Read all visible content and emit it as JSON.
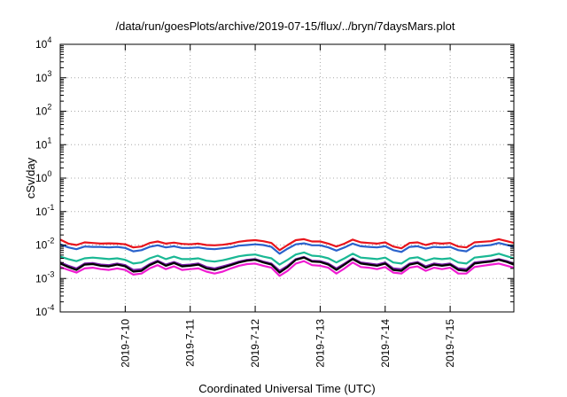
{
  "chart_data": {
    "type": "line",
    "title": "/data/run/goesPlots/archive/2019-07-15/flux/../bryn/7daysMars.plot",
    "xlabel": "Coordinated Universal Time (UTC)",
    "ylabel": "cSv/day",
    "yscale": "log",
    "ylim": [
      0.0001,
      10000
    ],
    "xlim": [
      0.0,
      6.98
    ],
    "y_tick_exponents": [
      "4",
      "3",
      "2",
      "1",
      "0",
      "-1",
      "-2",
      "-3",
      "-4"
    ],
    "x_ticks": [
      {
        "x": 1,
        "label": "2019-7-10"
      },
      {
        "x": 2,
        "label": "2019-7-11"
      },
      {
        "x": 3,
        "label": "2019-7-12"
      },
      {
        "x": 4,
        "label": "2019-7-13"
      },
      {
        "x": 5,
        "label": "2019-7-14"
      },
      {
        "x": 6,
        "label": "2019-7-15"
      }
    ],
    "grid": true,
    "x": [
      0.0,
      0.125,
      0.25,
      0.375,
      0.5,
      0.625,
      0.75,
      0.875,
      1.0,
      1.125,
      1.25,
      1.375,
      1.5,
      1.625,
      1.75,
      1.875,
      2.0,
      2.125,
      2.25,
      2.375,
      2.5,
      2.625,
      2.75,
      2.875,
      3.0,
      3.125,
      3.25,
      3.375,
      3.5,
      3.625,
      3.75,
      3.875,
      4.0,
      4.125,
      4.25,
      4.375,
      4.5,
      4.625,
      4.75,
      4.875,
      5.0,
      5.125,
      5.25,
      5.375,
      5.5,
      5.625,
      5.75,
      5.875,
      6.0,
      6.125,
      6.25,
      6.375,
      6.5,
      6.625,
      6.75,
      6.875,
      6.98
    ],
    "series": [
      {
        "color": "#e8141c",
        "values": [
          0.0145,
          0.011,
          0.01,
          0.012,
          0.0115,
          0.011,
          0.0112,
          0.011,
          0.0105,
          0.0085,
          0.009,
          0.0115,
          0.0128,
          0.011,
          0.0118,
          0.0108,
          0.0105,
          0.011,
          0.01,
          0.0098,
          0.0102,
          0.011,
          0.0125,
          0.0135,
          0.014,
          0.013,
          0.0115,
          0.007,
          0.01,
          0.014,
          0.015,
          0.0128,
          0.0128,
          0.011,
          0.009,
          0.011,
          0.0145,
          0.012,
          0.0115,
          0.011,
          0.012,
          0.009,
          0.008,
          0.0115,
          0.012,
          0.01,
          0.0115,
          0.011,
          0.0115,
          0.009,
          0.0085,
          0.012,
          0.0125,
          0.013,
          0.015,
          0.013,
          0.0115
        ]
      },
      {
        "color": "#2a62cc",
        "values": [
          0.0105,
          0.0085,
          0.0075,
          0.009,
          0.0088,
          0.0088,
          0.0085,
          0.0088,
          0.0082,
          0.0065,
          0.007,
          0.0088,
          0.0098,
          0.0085,
          0.0092,
          0.0082,
          0.0082,
          0.0085,
          0.0078,
          0.0075,
          0.008,
          0.0085,
          0.0096,
          0.01,
          0.0105,
          0.01,
          0.0088,
          0.0055,
          0.0078,
          0.0105,
          0.0112,
          0.0098,
          0.0098,
          0.0085,
          0.0068,
          0.0085,
          0.011,
          0.0092,
          0.0088,
          0.0085,
          0.0092,
          0.007,
          0.0062,
          0.0088,
          0.0092,
          0.0078,
          0.0088,
          0.0085,
          0.0088,
          0.007,
          0.0065,
          0.0092,
          0.0095,
          0.01,
          0.0115,
          0.01,
          0.0088
        ]
      },
      {
        "color": "#1ab894",
        "values": [
          0.0045,
          0.0038,
          0.0033,
          0.004,
          0.0042,
          0.004,
          0.0038,
          0.004,
          0.0036,
          0.0028,
          0.003,
          0.004,
          0.0048,
          0.0038,
          0.0045,
          0.0038,
          0.0038,
          0.004,
          0.0034,
          0.0032,
          0.0035,
          0.004,
          0.0046,
          0.005,
          0.0052,
          0.0045,
          0.004,
          0.0026,
          0.0036,
          0.0052,
          0.006,
          0.0048,
          0.0046,
          0.004,
          0.003,
          0.004,
          0.0055,
          0.0042,
          0.004,
          0.0038,
          0.0042,
          0.003,
          0.0028,
          0.004,
          0.0043,
          0.0034,
          0.004,
          0.0038,
          0.004,
          0.003,
          0.0028,
          0.0042,
          0.0045,
          0.0048,
          0.0055,
          0.0046,
          0.004
        ]
      },
      {
        "color": "#7a1fa8",
        "values": [
          0.003,
          0.0024,
          0.002,
          0.0028,
          0.0029,
          0.0026,
          0.0025,
          0.0028,
          0.0025,
          0.0018,
          0.0019,
          0.0027,
          0.0034,
          0.0026,
          0.0031,
          0.0025,
          0.0026,
          0.0028,
          0.0022,
          0.002,
          0.0023,
          0.0027,
          0.0032,
          0.0036,
          0.0038,
          0.0032,
          0.0028,
          0.0017,
          0.0024,
          0.0038,
          0.0044,
          0.0034,
          0.0033,
          0.0028,
          0.002,
          0.0028,
          0.004,
          0.003,
          0.0028,
          0.0026,
          0.003,
          0.002,
          0.0019,
          0.0028,
          0.0031,
          0.0023,
          0.0028,
          0.0026,
          0.0028,
          0.002,
          0.0019,
          0.003,
          0.0032,
          0.0034,
          0.0038,
          0.0033,
          0.0028
        ]
      },
      {
        "color": "#000000",
        "values": [
          0.0028,
          0.0022,
          0.0018,
          0.0026,
          0.0027,
          0.0024,
          0.0023,
          0.0026,
          0.0023,
          0.0016,
          0.0017,
          0.0025,
          0.0032,
          0.0024,
          0.0029,
          0.0023,
          0.0024,
          0.0026,
          0.002,
          0.0018,
          0.0021,
          0.0025,
          0.003,
          0.0034,
          0.0036,
          0.003,
          0.0026,
          0.0015,
          0.0022,
          0.0036,
          0.0042,
          0.0032,
          0.0031,
          0.0026,
          0.0018,
          0.0026,
          0.0038,
          0.0028,
          0.0026,
          0.0024,
          0.0028,
          0.0018,
          0.0017,
          0.0026,
          0.0029,
          0.0021,
          0.0026,
          0.0024,
          0.0026,
          0.0018,
          0.0017,
          0.0028,
          0.003,
          0.0032,
          0.0036,
          0.0031,
          0.0026
        ]
      },
      {
        "color": "#f01cd2",
        "values": [
          0.0022,
          0.0018,
          0.0015,
          0.002,
          0.0021,
          0.0019,
          0.0018,
          0.002,
          0.0018,
          0.0013,
          0.0014,
          0.002,
          0.0025,
          0.0019,
          0.0023,
          0.0018,
          0.0019,
          0.002,
          0.0016,
          0.0014,
          0.0016,
          0.002,
          0.0024,
          0.0027,
          0.0028,
          0.0024,
          0.0021,
          0.0012,
          0.0017,
          0.0028,
          0.0033,
          0.0025,
          0.0024,
          0.0021,
          0.0014,
          0.002,
          0.003,
          0.0022,
          0.0021,
          0.0019,
          0.0022,
          0.0015,
          0.0014,
          0.0021,
          0.0023,
          0.0017,
          0.0021,
          0.0019,
          0.0021,
          0.0014,
          0.0014,
          0.0022,
          0.0024,
          0.0026,
          0.0028,
          0.0024,
          0.0021
        ]
      }
    ]
  }
}
